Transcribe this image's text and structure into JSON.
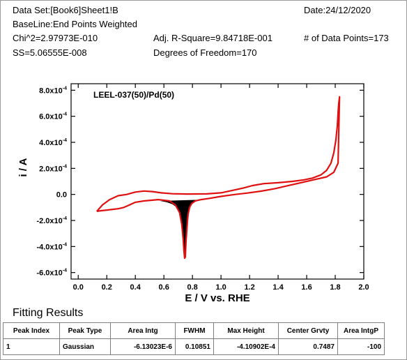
{
  "header": {
    "dataset": "Data Set:[Book6]Sheet1!B",
    "date": "Date:24/12/2020",
    "baseline": "BaseLine:End Points Weighted",
    "chi2": "Chi^2=2.97973E-010",
    "adj_r2": "Adj. R-Square=9.84718E-001",
    "npoints": "# of Data Points=173",
    "ss": "SS=5.06555E-008",
    "dof": "Degrees of Freedom=170"
  },
  "fitting": {
    "title": "Fitting Results",
    "columns": [
      "Peak Index",
      "Peak Type",
      "Area Intg",
      "FWHM",
      "Max Height",
      "Center Grvty",
      "Area IntgP"
    ],
    "rows": [
      [
        "1",
        "Gaussian",
        "-6.13023E-6",
        "0.10851",
        "-4.10902E-4",
        "0.7487",
        "-100"
      ]
    ]
  },
  "chart_data": {
    "type": "line",
    "title": "LEEL-037(50)/Pd(50)",
    "xlabel": "E / V vs. RHE",
    "ylabel": "i / A",
    "xlim": [
      -0.05,
      2.0
    ],
    "ylim": [
      -0.00065,
      0.00085
    ],
    "xticks": [
      "0.0",
      "0.2",
      "0.4",
      "0.6",
      "0.8",
      "1.0",
      "1.2",
      "1.4",
      "1.6",
      "1.8",
      "2.0"
    ],
    "yticks": [
      {
        "base": "8.0x10",
        "exp": "-4"
      },
      {
        "base": "6.0x10",
        "exp": "-4"
      },
      {
        "base": "4.0x10",
        "exp": "-4"
      },
      {
        "base": "2.0x10",
        "exp": "-4"
      },
      {
        "base": "0.0",
        "exp": ""
      },
      {
        "base": "-2.0x10",
        "exp": "-4"
      },
      {
        "base": "-4.0x10",
        "exp": "-4"
      },
      {
        "base": "-6.0x10",
        "exp": "-4"
      }
    ],
    "ytick_values": [
      0.0008,
      0.0006,
      0.0004,
      0.0002,
      0.0,
      -0.0002,
      -0.0004,
      -0.0006
    ],
    "xtick_values": [
      0.0,
      0.2,
      0.4,
      0.6,
      0.8,
      1.0,
      1.2,
      1.4,
      1.6,
      1.8,
      2.0
    ],
    "line_color": "#e01010",
    "peak_fill_color": "#000000",
    "series": [
      {
        "x": [
          0.13,
          0.17,
          0.22,
          0.28,
          0.34,
          0.4,
          0.46,
          0.52,
          0.58,
          0.66,
          0.76,
          0.9,
          1.0,
          1.1,
          1.16,
          1.22,
          1.3,
          1.4,
          1.5,
          1.58,
          1.64,
          1.7,
          1.74,
          1.77,
          1.79,
          1.805,
          1.815,
          1.82,
          1.825,
          1.83,
          1.82,
          1.79,
          1.74,
          1.66,
          1.58,
          1.48,
          1.38,
          1.28,
          1.18,
          1.1,
          1.0,
          0.92,
          0.86,
          0.82,
          0.795,
          0.78,
          0.77,
          0.765,
          0.76,
          0.755,
          0.75,
          0.745,
          0.74,
          0.735,
          0.725,
          0.71,
          0.68,
          0.64,
          0.56,
          0.46,
          0.4,
          0.36,
          0.32,
          0.28,
          0.24,
          0.2,
          0.16,
          0.13
        ],
        "y": [
          -0.00013,
          -8e-05,
          -4e-05,
          -1e-05,
          0.0,
          1.8e-05,
          2.6e-05,
          2.2e-05,
          1.2e-05,
          5e-06,
          3e-06,
          4e-06,
          1.2e-05,
          3.5e-05,
          5e-05,
          6.8e-05,
          8.3e-05,
          9e-05,
          0.0001,
          0.000112,
          0.000125,
          0.00015,
          0.000185,
          0.00024,
          0.00032,
          0.00042,
          0.00053,
          0.00063,
          0.0007,
          0.00075,
          0.00024,
          0.00017,
          0.000135,
          0.000115,
          9.5e-05,
          7e-05,
          4.5e-05,
          2.5e-05,
          1e-05,
          0.0,
          -1.5e-05,
          -3e-05,
          -4e-05,
          -5e-05,
          -7e-05,
          -0.0001,
          -0.00015,
          -0.0002,
          -0.00028,
          -0.00036,
          -0.00048,
          -0.00049,
          -0.00043,
          -0.00034,
          -0.00023,
          -0.00014,
          -8e-05,
          -5e-05,
          -4e-05,
          -5e-05,
          -6e-05,
          -8e-05,
          -0.0001,
          -0.00011,
          -0.000115,
          -0.00012,
          -0.000125,
          -0.00013
        ]
      }
    ],
    "peak_fill": {
      "x": [
        0.575,
        0.62,
        0.66,
        0.69,
        0.71,
        0.725,
        0.735,
        0.74,
        0.745,
        0.75,
        0.755,
        0.76,
        0.765,
        0.77,
        0.78,
        0.795,
        0.82,
        0.86,
        0.89
      ],
      "y": [
        -5e-05,
        -6e-05,
        -7.5e-05,
        -0.0001,
        -0.00014,
        -0.00023,
        -0.00034,
        -0.00043,
        -0.00049,
        -0.00048,
        -0.00036,
        -0.00028,
        -0.0002,
        -0.00015,
        -0.0001,
        -7e-05,
        -5e-05,
        -4e-05,
        -4e-05
      ]
    }
  }
}
